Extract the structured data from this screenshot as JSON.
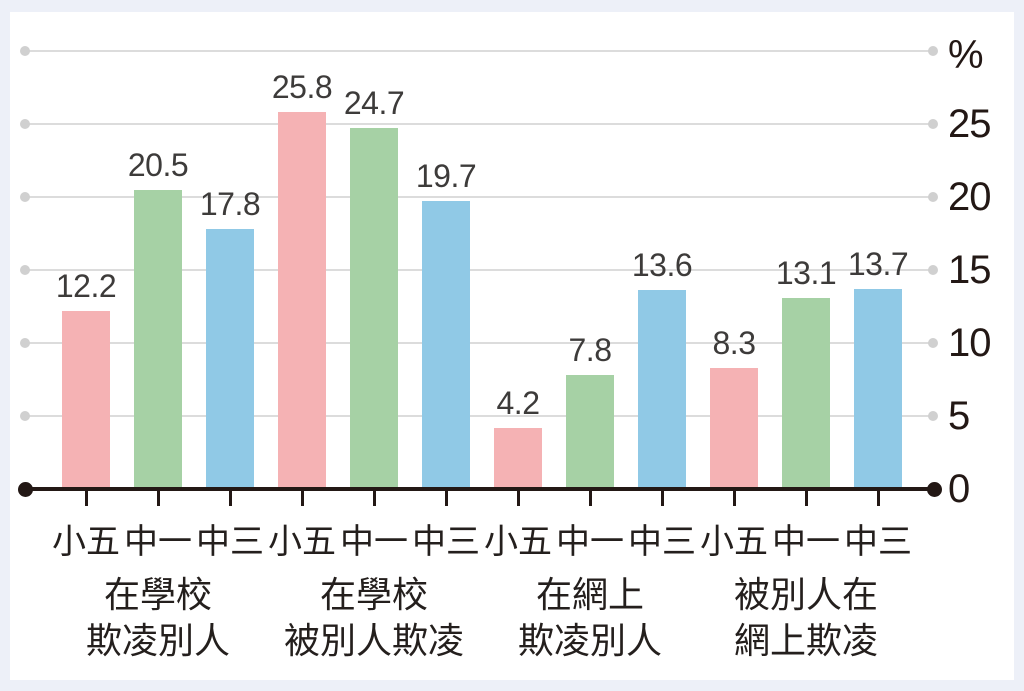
{
  "colors": {
    "page_background": "#edf0f8",
    "panel_background": "#ffffff",
    "grid_line": "#dcdcdc",
    "grid_dot": "#d0d0d0",
    "axis": "#231815",
    "value_text": "#3d3b3a",
    "label_text": "#241f1d"
  },
  "chart_data": {
    "type": "bar",
    "title": "",
    "ylabel": "%",
    "xlabel": "",
    "ylim": [
      0,
      30
    ],
    "yticks": [
      0,
      5,
      10,
      15,
      20,
      25
    ],
    "grid": true,
    "unit_symbol": "%",
    "bar_series_labels": [
      "小五",
      "中一",
      "中三"
    ],
    "series_colors": [
      "#f5b2b4",
      "#a6d1a5",
      "#90c9e6"
    ],
    "groups": [
      {
        "category_lines": [
          "在學校",
          "欺凌別人"
        ],
        "values": [
          12.2,
          20.5,
          17.8
        ]
      },
      {
        "category_lines": [
          "在學校",
          "被別人欺凌"
        ],
        "values": [
          25.8,
          24.7,
          19.7
        ]
      },
      {
        "category_lines": [
          "在網上",
          "欺凌別人"
        ],
        "values": [
          4.2,
          7.8,
          13.6
        ]
      },
      {
        "category_lines": [
          "被別人在",
          "網上欺凌"
        ],
        "values": [
          8.3,
          13.1,
          13.7
        ]
      }
    ],
    "value_labels": [
      "12.2",
      "20.5",
      "17.8",
      "25.8",
      "24.7",
      "19.7",
      "4.2",
      "7.8",
      "13.6",
      "8.3",
      "13.1",
      "13.7"
    ],
    "ytick_labels": [
      "0",
      "5",
      "10",
      "15",
      "20",
      "25"
    ],
    "legend_position": "none"
  }
}
